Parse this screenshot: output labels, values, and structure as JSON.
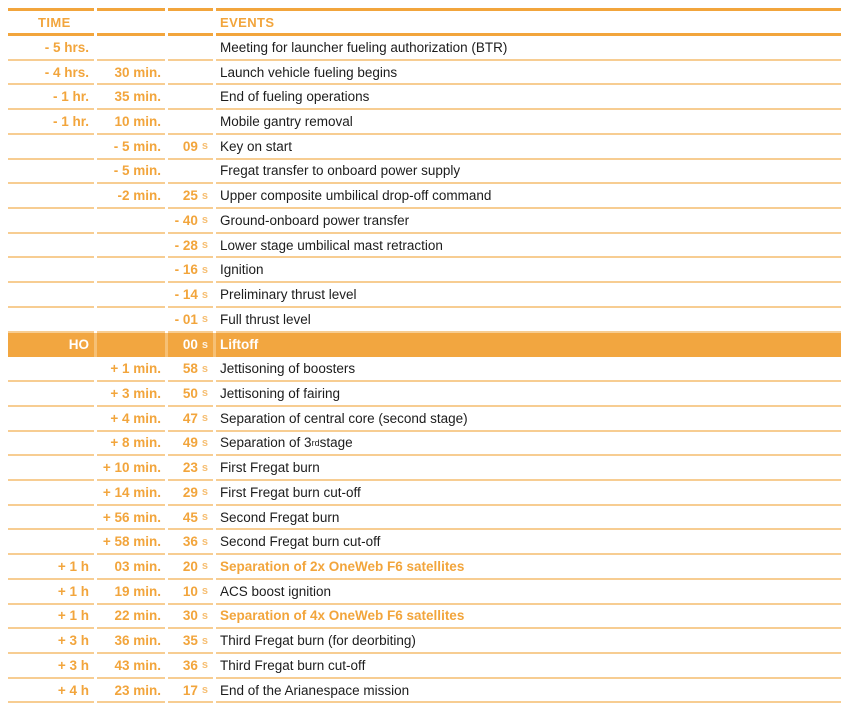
{
  "header": {
    "time_label": "TIME",
    "events_label": "EVENTS"
  },
  "units": {
    "seconds": "s"
  },
  "colors": {
    "orange": "#F2A53C",
    "highlight_bg": "#F2A640",
    "highlight_gap": "#F6C075",
    "separator": "#F7CD92",
    "unit_orange": "#F6BE72",
    "event_text": "#1C1C1C",
    "background": "#FFFFFF"
  },
  "rows": [
    {
      "h": "- 5 hrs.",
      "m": "",
      "s": "",
      "event": "Meeting for launcher fueling authorization (BTR)",
      "type": "normal"
    },
    {
      "h": "- 4 hrs.",
      "m": "30 min.",
      "s": "",
      "event": "Launch vehicle fueling begins",
      "type": "normal"
    },
    {
      "h": "- 1 hr.",
      "m": "35 min.",
      "s": "",
      "event": "End of fueling operations",
      "type": "normal"
    },
    {
      "h": "- 1 hr.",
      "m": "10 min.",
      "s": "",
      "event": "Mobile gantry removal",
      "type": "normal"
    },
    {
      "h": "",
      "m": "- 5 min.",
      "s": "09",
      "event": "Key on start",
      "type": "normal"
    },
    {
      "h": "",
      "m": "- 5 min.",
      "s": "",
      "event": "Fregat transfer to onboard power supply",
      "type": "normal"
    },
    {
      "h": "",
      "m": "-2 min.",
      "s": "25",
      "event": "Upper composite umbilical drop-off command",
      "type": "normal"
    },
    {
      "h": "",
      "m": "",
      "s": "- 40",
      "event": "Ground-onboard power transfer",
      "type": "normal"
    },
    {
      "h": "",
      "m": "",
      "s": "- 28",
      "event": "Lower stage umbilical mast retraction",
      "type": "normal"
    },
    {
      "h": "",
      "m": "",
      "s": "- 16",
      "event": "Ignition",
      "type": "normal"
    },
    {
      "h": "",
      "m": "",
      "s": "- 14",
      "event": "Preliminary thrust level",
      "type": "normal"
    },
    {
      "h": "",
      "m": "",
      "s": "- 01",
      "event": "Full thrust level",
      "type": "normal"
    },
    {
      "h": "HO",
      "m": "",
      "s": "00",
      "event": "Liftoff",
      "type": "highlight"
    },
    {
      "h": "",
      "m": "+ 1 min.",
      "s": "58",
      "event": "Jettisoning of boosters",
      "type": "normal"
    },
    {
      "h": "",
      "m": "+ 3 min.",
      "s": "50",
      "event": "Jettisoning of fairing",
      "type": "normal"
    },
    {
      "h": "",
      "m": "+ 4 min.",
      "s": "47",
      "event": "Separation of central core (second stage)",
      "type": "normal"
    },
    {
      "h": "",
      "m": "+ 8 min.",
      "s": "49",
      "event": "Separation of 3^{rd} stage",
      "type": "normal"
    },
    {
      "h": "",
      "m": "+ 10 min.",
      "s": "23",
      "event": "First Fregat burn",
      "type": "normal"
    },
    {
      "h": "",
      "m": "+ 14 min.",
      "s": "29",
      "event": "First Fregat burn cut-off",
      "type": "normal"
    },
    {
      "h": "",
      "m": "+ 56 min.",
      "s": "45",
      "event": "Second Fregat burn",
      "type": "normal"
    },
    {
      "h": "",
      "m": "+ 58 min.",
      "s": "36",
      "event": "Second Fregat burn cut-off",
      "type": "normal"
    },
    {
      "h": "+ 1 h",
      "m": "03 min.",
      "s": "20",
      "event": "Separation of 2x OneWeb F6 satellites",
      "type": "accent"
    },
    {
      "h": "+ 1 h",
      "m": "19 min.",
      "s": "10",
      "event": "ACS boost ignition",
      "type": "normal"
    },
    {
      "h": "+ 1 h",
      "m": "22 min.",
      "s": "30",
      "event": "Separation of 4x OneWeb F6 satellites",
      "type": "accent"
    },
    {
      "h": "+ 3 h",
      "m": "36 min.",
      "s": "35",
      "event": "Third Fregat burn (for deorbiting)",
      "type": "normal"
    },
    {
      "h": "+ 3 h",
      "m": "43 min.",
      "s": "36",
      "event": "Third Fregat burn cut-off",
      "type": "normal"
    },
    {
      "h": "+ 4 h",
      "m": "23 min.",
      "s": "17",
      "event": "End of the Arianespace mission",
      "type": "normal"
    }
  ]
}
